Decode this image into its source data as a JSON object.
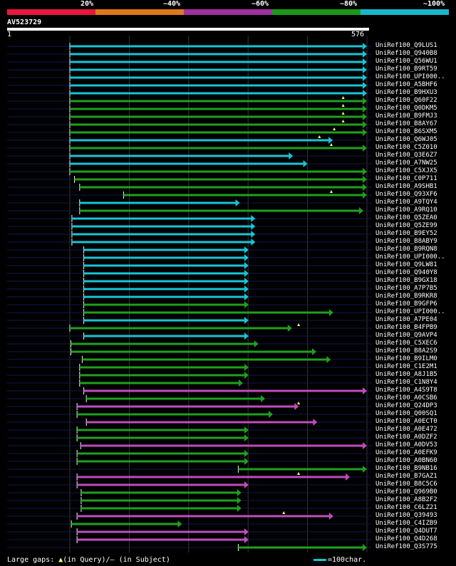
{
  "colors": {
    "bands": [
      "#e8173a",
      "#e0771a",
      "#a030a0",
      "#1a9a1a",
      "#17b8c8"
    ],
    "cyan": "#17c5d8",
    "green": "#1fa01f",
    "magenta": "#c04cc0",
    "background": "#000000",
    "gridline": "#333333",
    "rowguide": "#101850"
  },
  "header": {
    "percent_labels": [
      "20%",
      "~40%",
      "~60%",
      "~80%",
      "~100%"
    ],
    "query_id": "AV523729",
    "scale_start": "1",
    "scale_end": "576"
  },
  "query_length": 576,
  "hits": [
    {
      "name": "UniRef100_Q9LUS1",
      "start": 1,
      "end": 576,
      "color": "cyan"
    },
    {
      "name": "UniRef100_Q940B8",
      "start": 1,
      "end": 576,
      "color": "cyan"
    },
    {
      "name": "UniRef100_Q56WU1",
      "start": 1,
      "end": 576,
      "color": "cyan"
    },
    {
      "name": "UniRef100_B9RT59",
      "start": 1,
      "end": 576,
      "color": "cyan"
    },
    {
      "name": "UniRef100_UPI000..",
      "start": 1,
      "end": 576,
      "color": "cyan"
    },
    {
      "name": "UniRef100_A5BHF6",
      "start": 1,
      "end": 576,
      "color": "cyan"
    },
    {
      "name": "UniRef100_B9HXU3",
      "start": 1,
      "end": 576,
      "color": "cyan"
    },
    {
      "name": "UniRef100_Q60F22",
      "start": 1,
      "end": 576,
      "color": "green",
      "gap_q": [
        0.92
      ]
    },
    {
      "name": "UniRef100_Q0DKM5",
      "start": 1,
      "end": 576,
      "color": "green",
      "gap_q": [
        0.92
      ]
    },
    {
      "name": "UniRef100_B9FMJ3",
      "start": 1,
      "end": 576,
      "color": "green",
      "gap_q": [
        0.92
      ]
    },
    {
      "name": "UniRef100_B8AY67",
      "start": 1,
      "end": 576,
      "color": "green",
      "gap_q": [
        0.92
      ]
    },
    {
      "name": "UniRef100_B6SXM5",
      "start": 1,
      "end": 576,
      "color": "green",
      "gap_q": [
        0.89
      ]
    },
    {
      "name": "UniRef100_Q6WJ05",
      "start": 1,
      "end": 510,
      "color": "cyan",
      "gap_q": [
        0.84
      ]
    },
    {
      "name": "UniRef100_C5Z010",
      "start": 1,
      "end": 576,
      "color": "green",
      "gap_q": [
        0.88
      ]
    },
    {
      "name": "UniRef100_Q3E6Z7",
      "start": 1,
      "end": 433,
      "color": "cyan"
    },
    {
      "name": "UniRef100_A7NW25",
      "start": 1,
      "end": 461,
      "color": "cyan"
    },
    {
      "name": "UniRef100_C5XJX5",
      "start": 1,
      "end": 576,
      "color": "green"
    },
    {
      "name": "UniRef100_C0P711",
      "start": 10,
      "end": 576,
      "color": "green"
    },
    {
      "name": "UniRef100_A9SHB1",
      "start": 20,
      "end": 576,
      "color": "green"
    },
    {
      "name": "UniRef100_Q93XF6",
      "start": 105,
      "end": 576,
      "color": "green",
      "gap_q": [
        0.88
      ]
    },
    {
      "name": "UniRef100_A9TQY4",
      "start": 20,
      "end": 330,
      "color": "cyan"
    },
    {
      "name": "UniRef100_A9RQ10",
      "start": 20,
      "end": 569,
      "color": "green"
    },
    {
      "name": "UniRef100_Q5ZEA0",
      "start": 5,
      "end": 360,
      "color": "cyan"
    },
    {
      "name": "UniRef100_Q5ZE99",
      "start": 5,
      "end": 360,
      "color": "cyan"
    },
    {
      "name": "UniRef100_B9EY52",
      "start": 5,
      "end": 360,
      "color": "cyan"
    },
    {
      "name": "UniRef100_B8ABY9",
      "start": 5,
      "end": 360,
      "color": "cyan"
    },
    {
      "name": "UniRef100_B9RQN8",
      "start": 28,
      "end": 347,
      "color": "cyan"
    },
    {
      "name": "UniRef100_UPI000..",
      "start": 28,
      "end": 347,
      "color": "cyan"
    },
    {
      "name": "UniRef100_Q9LW81",
      "start": 28,
      "end": 347,
      "color": "cyan"
    },
    {
      "name": "UniRef100_Q940Y8",
      "start": 28,
      "end": 347,
      "color": "cyan"
    },
    {
      "name": "UniRef100_B9GX18",
      "start": 28,
      "end": 347,
      "color": "cyan"
    },
    {
      "name": "UniRef100_A7P7B5",
      "start": 28,
      "end": 347,
      "color": "cyan"
    },
    {
      "name": "UniRef100_B9RKR8",
      "start": 28,
      "end": 347,
      "color": "cyan"
    },
    {
      "name": "UniRef100_B9GFP6",
      "start": 28,
      "end": 347,
      "color": "green"
    },
    {
      "name": "UniRef100_UPI000..",
      "start": 28,
      "end": 511,
      "color": "green"
    },
    {
      "name": "UniRef100_A7PE04",
      "start": 28,
      "end": 347,
      "color": "cyan"
    },
    {
      "name": "UniRef100_B4FPB9",
      "start": 1,
      "end": 431,
      "color": "green",
      "gap_q": [
        0.77
      ]
    },
    {
      "name": "UniRef100_Q9AVP4",
      "start": 28,
      "end": 347,
      "color": "cyan"
    },
    {
      "name": "UniRef100_C5XEC6",
      "start": 3,
      "end": 366,
      "color": "green"
    },
    {
      "name": "UniRef100_B8A2S9",
      "start": 3,
      "end": 478,
      "color": "green"
    },
    {
      "name": "UniRef100_B9ILM0",
      "start": 25,
      "end": 506,
      "color": "green"
    },
    {
      "name": "UniRef100_C1E2M1",
      "start": 20,
      "end": 347,
      "color": "green"
    },
    {
      "name": "UniRef100_A8J1B5",
      "start": 20,
      "end": 347,
      "color": "green"
    },
    {
      "name": "UniRef100_C1N8Y4",
      "start": 20,
      "end": 336,
      "color": "green"
    },
    {
      "name": "UniRef100_A4S9T8",
      "start": 28,
      "end": 576,
      "color": "magenta"
    },
    {
      "name": "UniRef100_A0CSB6",
      "start": 33,
      "end": 379,
      "color": "green"
    },
    {
      "name": "UniRef100_Q24DP3",
      "start": 15,
      "end": 444,
      "color": "magenta",
      "gap_q": [
        0.77
      ]
    },
    {
      "name": "UniRef100_Q00SQ1",
      "start": 15,
      "end": 394,
      "color": "green"
    },
    {
      "name": "UniRef100_A0ECT0",
      "start": 33,
      "end": 480,
      "color": "magenta"
    },
    {
      "name": "UniRef100_A0E472",
      "start": 15,
      "end": 347,
      "color": "green"
    },
    {
      "name": "UniRef100_A0DZF2",
      "start": 15,
      "end": 347,
      "color": "green"
    },
    {
      "name": "UniRef100_A0DV53",
      "start": 22,
      "end": 576,
      "color": "magenta"
    },
    {
      "name": "UniRef100_A0EFK9",
      "start": 15,
      "end": 347,
      "color": "green"
    },
    {
      "name": "UniRef100_A0BN60",
      "start": 15,
      "end": 347,
      "color": "green"
    },
    {
      "name": "UniRef100_B9NB16",
      "start": 327,
      "end": 576,
      "color": "green"
    },
    {
      "name": "UniRef100_B7GAZ1",
      "start": 15,
      "end": 543,
      "color": "magenta",
      "gap_q": [
        0.77
      ]
    },
    {
      "name": "UniRef100_B8C5C6",
      "start": 15,
      "end": 347,
      "color": "magenta"
    },
    {
      "name": "UniRef100_Q969B0",
      "start": 23,
      "end": 333,
      "color": "green"
    },
    {
      "name": "UniRef100_A8B2F2",
      "start": 23,
      "end": 333,
      "color": "green"
    },
    {
      "name": "UniRef100_C6LZ21",
      "start": 23,
      "end": 333,
      "color": "green"
    },
    {
      "name": "UniRef100_Q39493",
      "start": 15,
      "end": 511,
      "color": "magenta",
      "gap_q": [
        0.72
      ]
    },
    {
      "name": "UniRef100_C4IZB9",
      "start": 4,
      "end": 218,
      "color": "green"
    },
    {
      "name": "UniRef100_Q4DUT7",
      "start": 15,
      "end": 347,
      "color": "magenta"
    },
    {
      "name": "UniRef100_Q4D268",
      "start": 15,
      "end": 347,
      "color": "magenta"
    },
    {
      "name": "UniRef100_Q3S775",
      "start": 327,
      "end": 576,
      "color": "green"
    }
  ],
  "legend": {
    "label": "Large gaps:",
    "query_marker": "▲",
    "query_text": "(in Query)/",
    "subject_marker": "–",
    "subject_text": "(in Subject)",
    "scale_text": "=100char."
  }
}
